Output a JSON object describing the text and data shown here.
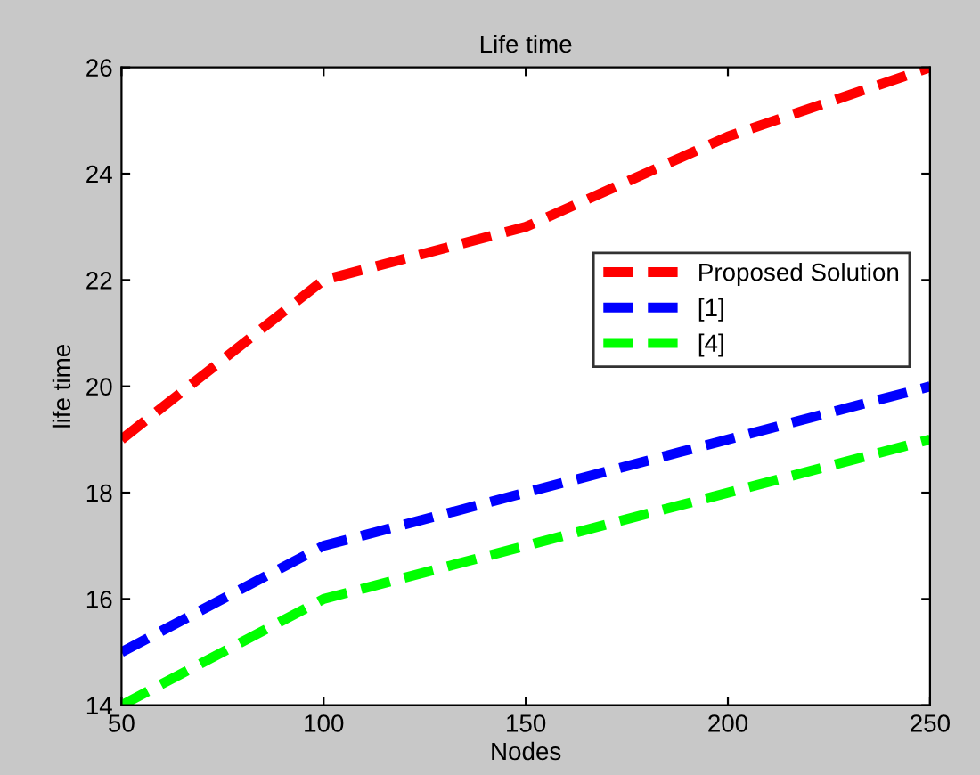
{
  "chart_data": {
    "type": "line",
    "title": "Life time",
    "xlabel": "Nodes",
    "ylabel": "life time",
    "x": [
      50,
      100,
      150,
      200,
      250
    ],
    "series": [
      {
        "name": "Proposed Solution",
        "color": "#ff0000",
        "values": [
          19,
          22,
          23,
          24.7,
          26
        ]
      },
      {
        "name": "[1]",
        "color": "#0000ff",
        "values": [
          15,
          17,
          18,
          19,
          20
        ]
      },
      {
        "name": "[4]",
        "color": "#00ff00",
        "values": [
          14,
          16,
          17,
          18,
          19
        ]
      }
    ],
    "xlim": [
      50,
      250
    ],
    "xticks": [
      50,
      100,
      150,
      200,
      250
    ],
    "ylim": [
      14,
      26
    ],
    "yticks": [
      14,
      16,
      18,
      20,
      22,
      24,
      26
    ],
    "grid": false,
    "legend": "right",
    "line_style": "dashed",
    "marker": "none"
  }
}
